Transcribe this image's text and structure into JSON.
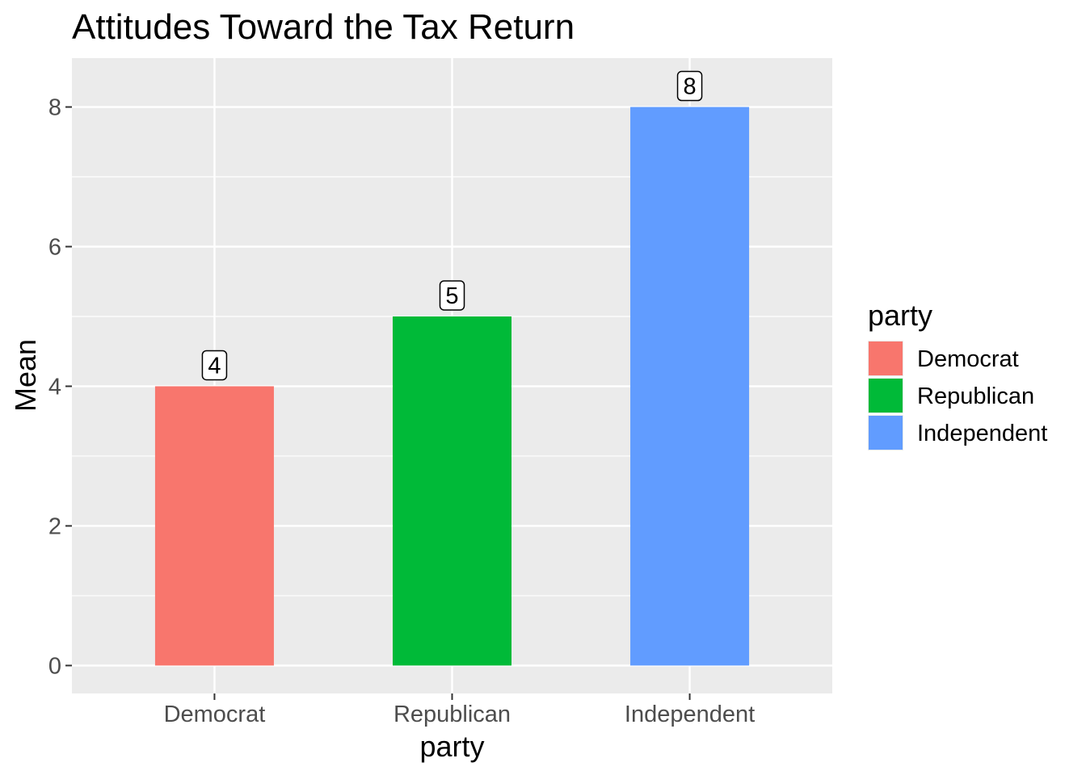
{
  "chart_data": {
    "type": "bar",
    "title": "Attitudes Toward the Tax Return",
    "xlabel": "party",
    "ylabel": "Mean",
    "categories": [
      "Democrat",
      "Republican",
      "Independent"
    ],
    "values": [
      4,
      5,
      8
    ],
    "colors": [
      "#F8766D",
      "#00BA38",
      "#619CFF"
    ],
    "data_labels": [
      "4",
      "5",
      "8"
    ],
    "ylim": [
      -0.4,
      8.7
    ],
    "yticks": [
      0,
      2,
      4,
      6,
      8
    ],
    "ytick_labels": [
      "0",
      "2",
      "4",
      "6",
      "8"
    ],
    "grid": true,
    "panel_background": "#EBEBEB",
    "legend": {
      "title": "party",
      "placement": "right",
      "entries": [
        "Democrat",
        "Republican",
        "Independent"
      ]
    }
  }
}
